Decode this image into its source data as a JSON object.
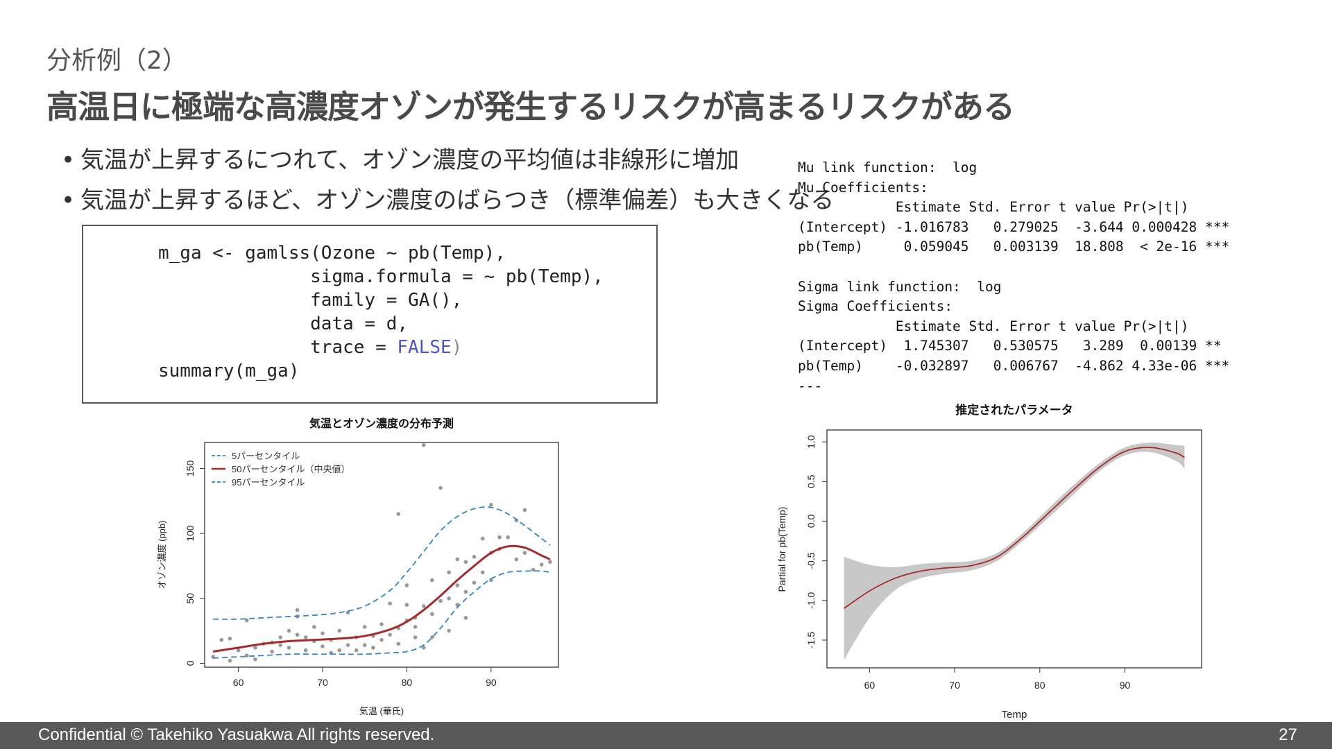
{
  "slide": {
    "subtitle": "分析例（2）",
    "title": "高温日に極端な高濃度オゾンが発生するリスクが高まるリスクがある",
    "bullets": [
      "気温が上昇するにつれて、オゾン濃度の平均値は非線形に増加",
      "気温が上昇するほど、オゾン濃度のばらつき（標準偏差）も大きくなる"
    ],
    "code": {
      "line1": "m_ga <- gamlss(Ozone ~ pb(Temp),",
      "line2": "sigma.formula = ~ pb(Temp),",
      "line3": "family = GA(),",
      "line4a": "data = d,",
      "line5a": "trace = ",
      "line5b": "FALSE",
      "line5c": ")",
      "line6": "summary(m_ga)"
    },
    "r_output": [
      "Mu link function:  log",
      "Mu Coefficients:",
      "            Estimate Std. Error t value Pr(>|t|)",
      "(Intercept) -1.016783   0.279025  -3.644 0.000428 ***",
      "pb(Temp)     0.059045   0.003139  18.808  < 2e-16 ***",
      "",
      "Sigma link function:  log",
      "Sigma Coefficients:",
      "            Estimate Std. Error t value Pr(>|t|)",
      "(Intercept)  1.745307   0.530575   3.289  0.00139 **",
      "pb(Temp)    -0.032897   0.006767  -4.862 4.33e-06 ***",
      "---"
    ],
    "footer": {
      "left": "Confidential  © Takehiko Yasuakwa  All rights reserved.",
      "page": "27"
    }
  },
  "chart_data": [
    {
      "type": "scatter",
      "title": "気温とオゾン濃度の分布予測",
      "xlabel": "気温 (華氏)",
      "ylabel": "オゾン濃度 (ppb)",
      "xlim": [
        56,
        98
      ],
      "ylim": [
        -3,
        170
      ],
      "xticks": [
        60,
        70,
        80,
        90
      ],
      "yticks": [
        0,
        50,
        100,
        150
      ],
      "legend_position": "top-left",
      "colors": {
        "p50": "#a52a2a",
        "p5_95": "#2e86c9",
        "points": "#777777"
      },
      "series": [
        {
          "name": "5パーセンタイル",
          "style": "dashed",
          "x": [
            57,
            60,
            63,
            66,
            69,
            72,
            75,
            78,
            80,
            82,
            84,
            86,
            88,
            90,
            92,
            94,
            96,
            97
          ],
          "values": [
            4,
            5,
            6,
            7,
            7,
            7,
            7,
            8,
            9,
            14,
            27,
            43,
            55,
            65,
            70,
            71,
            71,
            70
          ]
        },
        {
          "name": "50パーセンタイル（中央値）",
          "style": "solid",
          "x": [
            57,
            60,
            63,
            66,
            69,
            72,
            75,
            78,
            80,
            82,
            84,
            86,
            88,
            90,
            92,
            94,
            96,
            97
          ],
          "values": [
            9,
            12,
            15,
            17,
            18,
            19,
            21,
            26,
            32,
            41,
            52,
            64,
            75,
            85,
            90,
            89,
            83,
            80
          ]
        },
        {
          "name": "95パーセンタイル",
          "style": "dashed",
          "x": [
            57,
            60,
            63,
            66,
            69,
            72,
            75,
            78,
            80,
            82,
            84,
            86,
            88,
            90,
            92,
            94,
            96,
            97
          ],
          "values": [
            34,
            34,
            35,
            36,
            37,
            39,
            44,
            56,
            70,
            86,
            102,
            113,
            119,
            120,
            115,
            106,
            96,
            91
          ]
        }
      ],
      "points": [
        [
          57,
          5
        ],
        [
          58,
          18
        ],
        [
          59,
          19
        ],
        [
          59,
          2
        ],
        [
          60,
          10
        ],
        [
          61,
          6
        ],
        [
          61,
          33
        ],
        [
          62,
          12
        ],
        [
          62,
          3
        ],
        [
          63,
          15
        ],
        [
          64,
          9
        ],
        [
          64,
          16
        ],
        [
          65,
          14
        ],
        [
          65,
          20
        ],
        [
          66,
          25
        ],
        [
          66,
          12
        ],
        [
          67,
          22
        ],
        [
          67,
          36
        ],
        [
          67,
          41
        ],
        [
          68,
          20
        ],
        [
          68,
          10
        ],
        [
          69,
          17
        ],
        [
          69,
          28
        ],
        [
          70,
          13
        ],
        [
          70,
          23
        ],
        [
          71,
          8
        ],
        [
          71,
          18
        ],
        [
          72,
          25
        ],
        [
          72,
          10
        ],
        [
          73,
          39
        ],
        [
          73,
          14
        ],
        [
          74,
          20
        ],
        [
          74,
          10
        ],
        [
          75,
          28
        ],
        [
          75,
          14
        ],
        [
          76,
          21
        ],
        [
          76,
          12
        ],
        [
          77,
          30
        ],
        [
          77,
          18
        ],
        [
          78,
          22
        ],
        [
          78,
          46
        ],
        [
          79,
          115
        ],
        [
          79,
          27
        ],
        [
          79,
          15
        ],
        [
          80,
          33
        ],
        [
          80,
          45
        ],
        [
          80,
          60
        ],
        [
          81,
          35
        ],
        [
          81,
          20
        ],
        [
          81,
          28
        ],
        [
          82,
          168
        ],
        [
          82,
          44
        ],
        [
          82,
          12
        ],
        [
          83,
          64
        ],
        [
          83,
          38
        ],
        [
          83,
          20
        ],
        [
          84,
          135
        ],
        [
          84,
          48
        ],
        [
          85,
          70
        ],
        [
          85,
          50
        ],
        [
          85,
          25
        ],
        [
          86,
          80
        ],
        [
          86,
          45
        ],
        [
          86,
          60
        ],
        [
          87,
          78
        ],
        [
          87,
          55
        ],
        [
          87,
          35
        ],
        [
          88,
          82
        ],
        [
          88,
          62
        ],
        [
          89,
          96
        ],
        [
          89,
          70
        ],
        [
          90,
          122
        ],
        [
          90,
          85
        ],
        [
          90,
          64
        ],
        [
          91,
          97
        ],
        [
          91,
          88
        ],
        [
          92,
          97
        ],
        [
          93,
          80
        ],
        [
          93,
          110
        ],
        [
          94,
          118
        ],
        [
          94,
          85
        ],
        [
          95,
          72
        ],
        [
          96,
          76
        ],
        [
          97,
          78
        ]
      ]
    },
    {
      "type": "line",
      "title": "推定されたパラメータ",
      "xlabel": "Temp",
      "ylabel": "Partial for pb(Temp)",
      "xlim": [
        55,
        99
      ],
      "ylim": [
        -1.85,
        1.15
      ],
      "xticks": [
        60,
        70,
        80,
        90
      ],
      "yticks": [
        -1.5,
        -1.0,
        -0.5,
        0.0,
        0.5,
        1.0
      ],
      "colors": {
        "line": "#a52a2a",
        "band": "#c8c8c8"
      },
      "series": [
        {
          "name": "",
          "x": [
            57,
            60,
            63,
            66,
            69,
            72,
            75,
            78,
            81,
            84,
            87,
            90,
            93,
            96,
            97
          ],
          "values": [
            -1.1,
            -0.88,
            -0.72,
            -0.63,
            -0.59,
            -0.56,
            -0.45,
            -0.2,
            0.1,
            0.4,
            0.68,
            0.88,
            0.93,
            0.86,
            0.8
          ]
        },
        {
          "name": "",
          "role": "upper",
          "x": [
            57,
            60,
            63,
            66,
            69,
            72,
            75,
            78,
            81,
            84,
            87,
            90,
            93,
            96,
            97
          ],
          "values": [
            -0.45,
            -0.55,
            -0.58,
            -0.54,
            -0.52,
            -0.5,
            -0.4,
            -0.15,
            0.16,
            0.46,
            0.73,
            0.93,
            0.99,
            0.96,
            0.95
          ]
        },
        {
          "name": "",
          "role": "lower",
          "x": [
            57,
            60,
            63,
            66,
            69,
            72,
            75,
            78,
            81,
            84,
            87,
            90,
            93,
            96,
            97
          ],
          "values": [
            -1.75,
            -1.22,
            -0.87,
            -0.72,
            -0.66,
            -0.62,
            -0.5,
            -0.25,
            0.04,
            0.34,
            0.63,
            0.83,
            0.87,
            0.76,
            0.66
          ]
        }
      ]
    }
  ]
}
